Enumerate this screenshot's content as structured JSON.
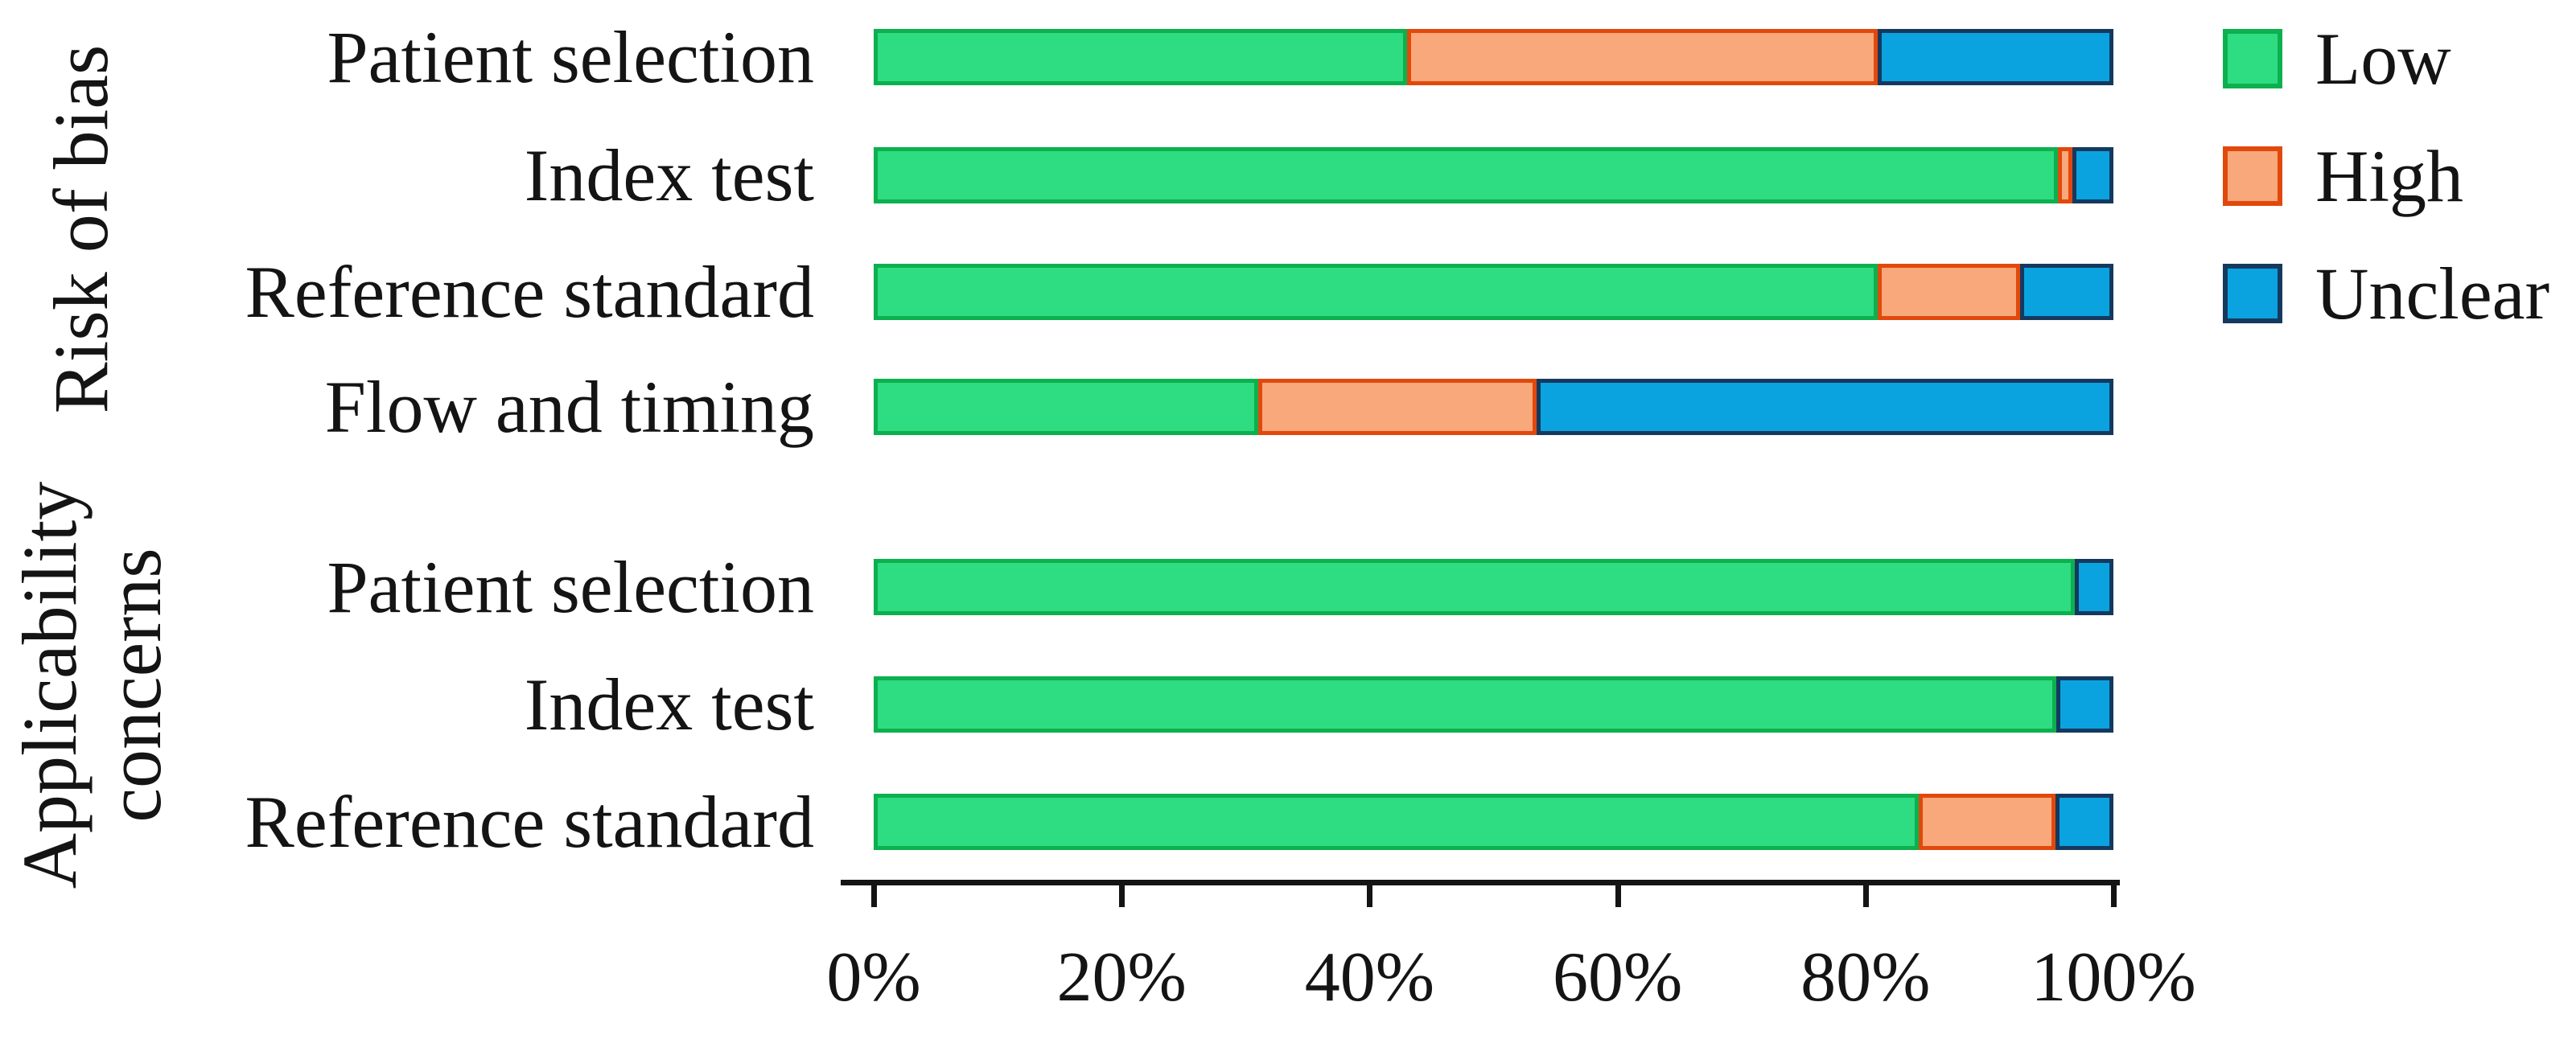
{
  "chart_data": {
    "type": "bar",
    "orientation": "horizontal",
    "stacked": true,
    "unit": "%",
    "title": "",
    "xlabel": "",
    "ylabel": "",
    "x_range": [
      0,
      100
    ],
    "x_ticks": [
      "0%",
      "20%",
      "40%",
      "60%",
      "80%",
      "100%"
    ],
    "grid": false,
    "legend_position": "right",
    "legend": [
      {
        "label": "Low",
        "fill": "#2edc82",
        "border": "#0db04e"
      },
      {
        "label": "High",
        "fill": "#f9a87c",
        "border": "#e1490c"
      },
      {
        "label": "Unclear",
        "fill": "#0aa3e0",
        "border": "#15395e"
      }
    ],
    "series_keys": [
      "low",
      "high",
      "unclear"
    ],
    "groups": [
      {
        "label": "Risk of bias",
        "rows": [
          {
            "category": "Patient selection",
            "low": 43,
            "high": 38,
            "unclear": 19
          },
          {
            "category": "Index test",
            "low": 95.5,
            "high": 1.2,
            "unclear": 3.3
          },
          {
            "category": "Reference standard",
            "low": 81,
            "high": 11.5,
            "unclear": 7.5
          },
          {
            "category": "Flow and timing",
            "low": 31,
            "high": 22.5,
            "unclear": 46.5
          }
        ]
      },
      {
        "label": "Applicability concerns",
        "rows": [
          {
            "category": "Patient selection",
            "low": 96.9,
            "high": 0,
            "unclear": 3.1
          },
          {
            "category": "Index test",
            "low": 95.4,
            "high": 0,
            "unclear": 4.6
          },
          {
            "category": "Reference standard",
            "low": 84.3,
            "high": 11,
            "unclear": 4.7
          }
        ]
      }
    ]
  },
  "colors": {
    "text": "#141414",
    "axis": "#141414",
    "background": "#ffffff"
  }
}
